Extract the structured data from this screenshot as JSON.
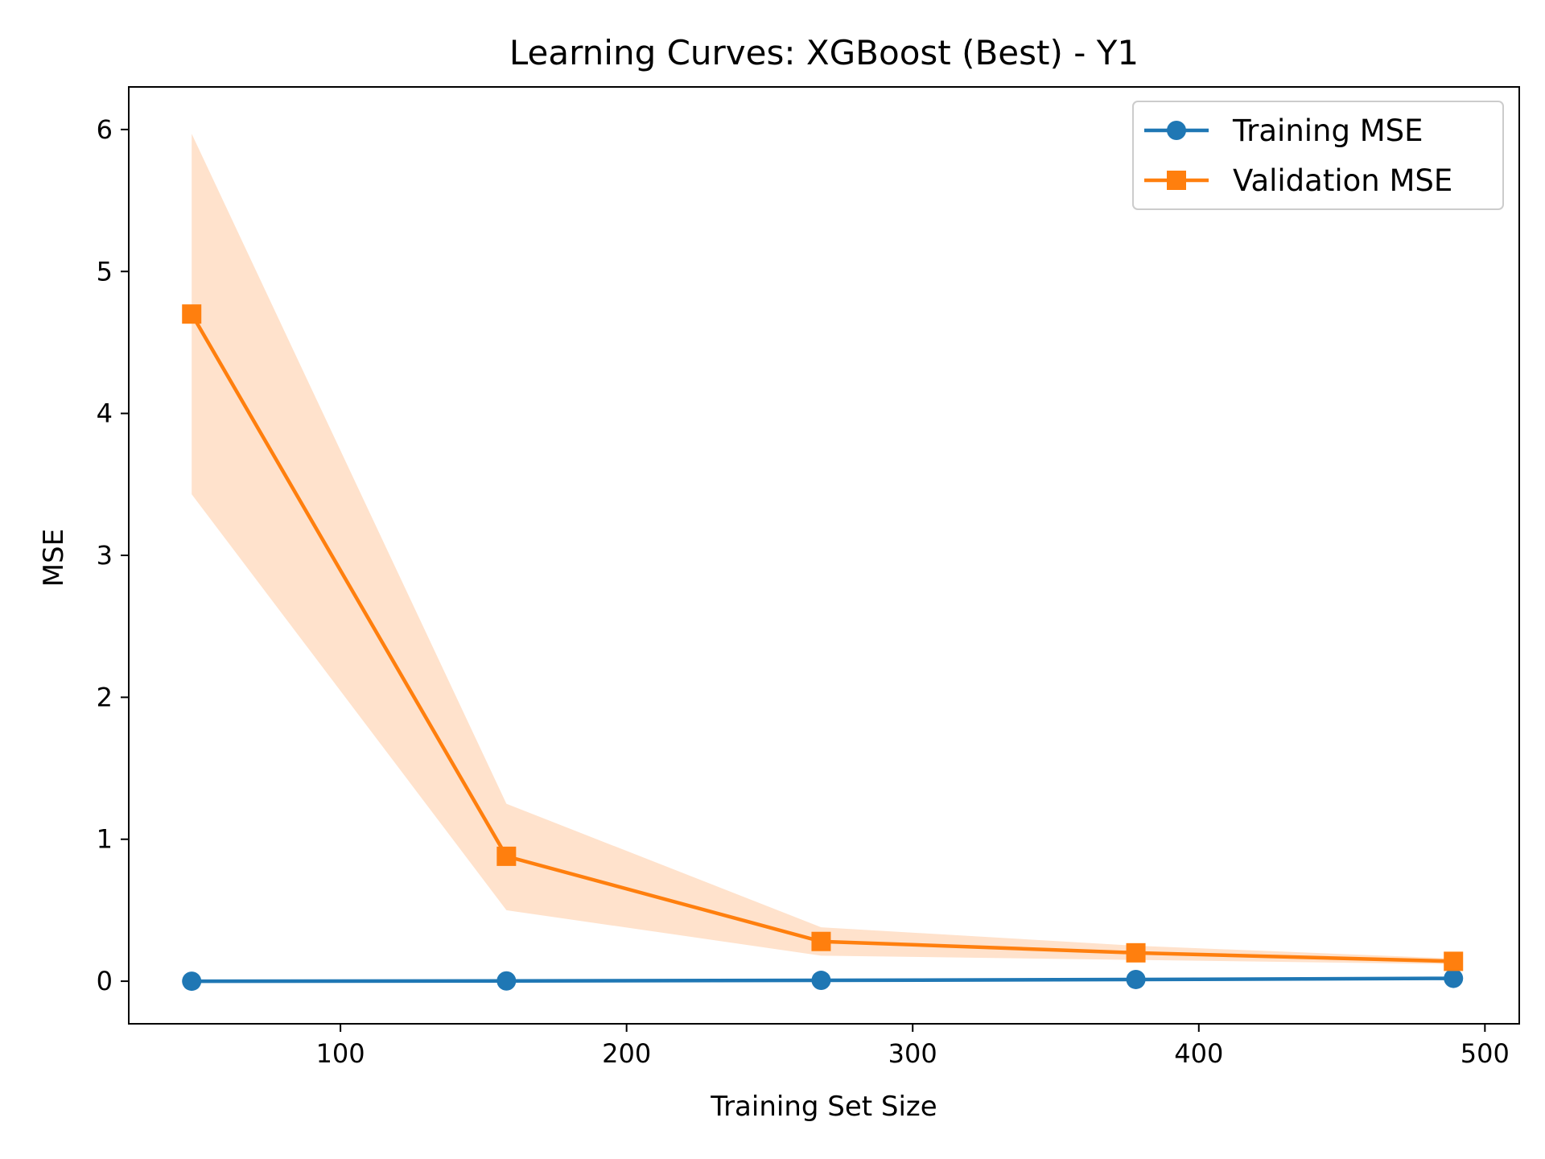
{
  "chart_data": {
    "type": "line",
    "title": "Learning Curves: XGBoost (Best) - Y1",
    "xlabel": "Training Set Size",
    "ylabel": "MSE",
    "xlim": [
      26,
      512
    ],
    "ylim": [
      -0.3,
      6.3
    ],
    "x_ticks": [
      100,
      200,
      300,
      400,
      500
    ],
    "y_ticks": [
      0,
      1,
      2,
      3,
      4,
      5,
      6
    ],
    "x_tick_labels": [
      "100",
      "200",
      "300",
      "400",
      "500"
    ],
    "y_tick_labels": [
      "0",
      "1",
      "2",
      "3",
      "4",
      "5",
      "6"
    ],
    "grid": false,
    "legend_position": "top-right",
    "x": [
      48,
      158,
      268,
      378,
      489
    ],
    "series": [
      {
        "name": "Training MSE",
        "values": [
          0.0,
          0.002,
          0.006,
          0.012,
          0.02
        ],
        "color": "#1f77b4",
        "marker": "circle"
      },
      {
        "name": "Validation MSE",
        "values": [
          4.7,
          0.88,
          0.28,
          0.2,
          0.14
        ],
        "band_lower": [
          3.43,
          0.5,
          0.18,
          0.15,
          0.12
        ],
        "band_upper": [
          5.97,
          1.25,
          0.38,
          0.25,
          0.16
        ],
        "color": "#ff7f0e",
        "band_color": "#ffe2cc",
        "marker": "square"
      }
    ]
  }
}
